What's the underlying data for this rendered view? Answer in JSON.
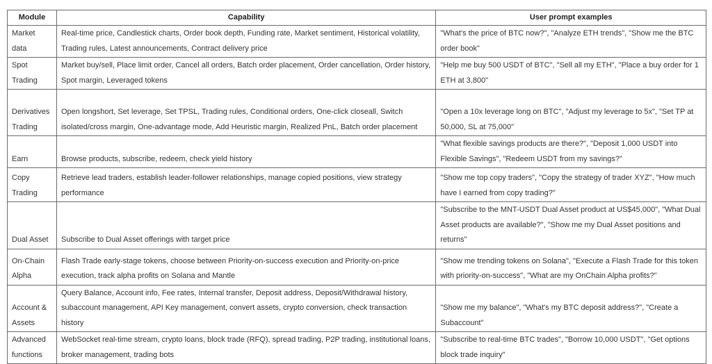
{
  "headers": {
    "module": "Module",
    "capability": "Capability",
    "examples": "User prompt examples"
  },
  "rows": [
    {
      "module": "Market data",
      "capability": "Real-time price, Candlestick charts, Order book depth, Funding rate, Market sentiment, Historical volatility, Trading rules, Latest announcements, Contract delivery price",
      "examples": "\"What's the price of BTC now?\", \"Analyze ETH trends\", \"Show me the BTC order book\""
    },
    {
      "module": "Spot Trading",
      "capability": "Market buy/sell, Place limit order, Cancel all orders, Batch order placement, Order cancellation, Order history, Spot margin, Leveraged tokens",
      "examples": "\"Help me buy 500 USDT of BTC\", \"Sell all my ETH\", \"Place a buy order for 1 ETH at 3,800\""
    },
    {
      "module": "Derivatives Trading",
      "capability": "Open longshort, Set leverage, Set TPSL, Trading rules, Conditional orders, One-click closeall, Switch isolated/cross margin, One-advantage mode, Add Heuristic margin, Realized PnL, Batch order placement",
      "examples": "\"Open a 10x leverage long on BTC\", \"Adjust my leverage to 5x\", \"Set TP at 50,000, SL at 75,000\""
    },
    {
      "module": "Earn",
      "capability": "Browse products, subscribe, redeem, check yield history",
      "examples": "\"What flexible savings products are there?\", \"Deposit 1,000 USDT into Flexible Savings\", \"Redeem USDT from my savings?\""
    },
    {
      "module": "Copy Trading",
      "capability": "Retrieve lead traders, establish leader-follower relationships, manage copied positions, view strategy performance",
      "examples": "\"Show me top copy traders\", \"Copy the strategy of trader XYZ\", \"How much have I earned from copy trading?\""
    },
    {
      "module": "Dual Asset",
      "capability": "Subscribe to Dual Asset offerings with target price",
      "examples": "\"Subscribe to the MNT-USDT Dual Asset product at US$45,000\", \"What Dual Asset products are available?\", \"Show me my Dual Asset positions and returns\""
    },
    {
      "module": "On-Chain Alpha",
      "capability": "Flash Trade early-stage tokens, choose between Priority-on-success execution and Priority-on-price execution, track alpha profits on Solana and Mantle",
      "examples": "\"Show me trending tokens on Solana\", \"Execute a Flash Trade for this token with priority-on-success\", \"What are my OnChain Alpha profits?\""
    },
    {
      "module": "Account & Assets",
      "capability": "Query Balance, Account info, Fee rates, Internal transfer, Deposit address, Deposit/Withdrawal history, subaccount management, API Key management, convert assets, crypto conversion, check transaction history",
      "examples": "\"Show me my balance\", \"What's my BTC deposit address?\", \"Create a Subaccount\""
    },
    {
      "module": "Advanced functions",
      "capability": "WebSocket real-time stream, crypto loans, block trade (RFQ), spread trading, P2P trading, institutional loans, broker management, trading bots",
      "examples": "\"Subscribe to real-time BTC trades\", \"Borrow 10,000 USDT\", \"Get options block trade inquiry\""
    }
  ]
}
